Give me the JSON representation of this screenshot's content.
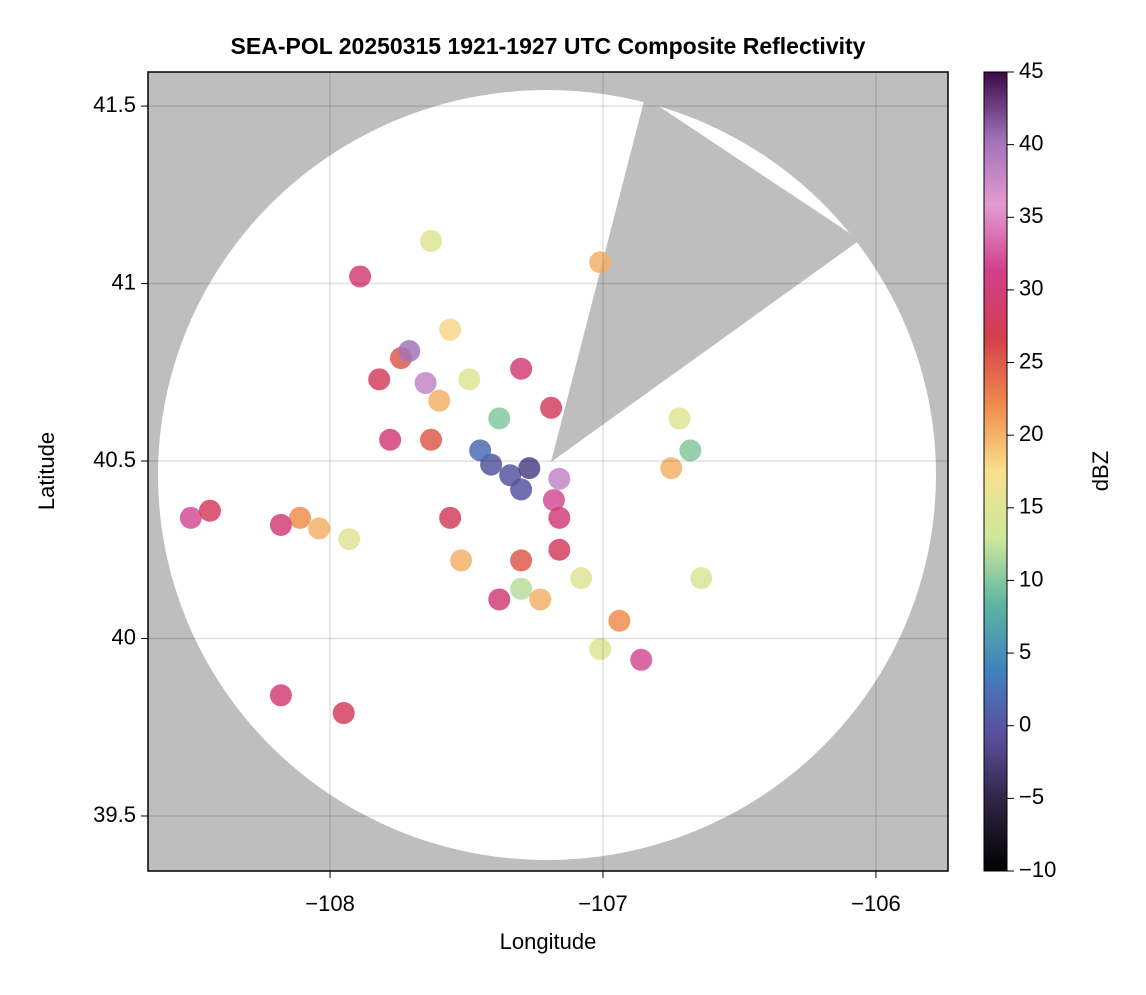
{
  "chart_data": {
    "type": "scatter",
    "title": "SEA-POL 20250315 1921-1927 UTC Composite Reflectivity",
    "xlabel": "Longitude",
    "ylabel": "Latitude",
    "xlim": [
      -108.667,
      -105.736
    ],
    "ylim": [
      39.345,
      41.596
    ],
    "xticks": [
      {
        "value": -108,
        "label": "−108"
      },
      {
        "value": -107,
        "label": "−107"
      },
      {
        "value": -106,
        "label": "−106"
      }
    ],
    "yticks": [
      39.5,
      40.0,
      40.5,
      41.0,
      41.5
    ],
    "grid": true,
    "x": [
      -107.41,
      -107.34,
      -107.27,
      -107.45,
      -107.3,
      -107.16,
      -107.18,
      -107.16,
      -107.74,
      -107.71,
      -107.65,
      -107.82,
      -107.6,
      -107.49,
      -107.56,
      -107.3,
      -107.19,
      -107.38,
      -107.63,
      -107.78,
      -108.11,
      -108.18,
      -108.04,
      -107.93,
      -108.51,
      -108.44,
      -107.3,
      -107.16,
      -107.38,
      -107.23,
      -107.3,
      -107.08,
      -106.94,
      -106.86,
      -107.01,
      -107.56,
      -107.52,
      -106.72,
      -106.68,
      -106.75,
      -106.64,
      -108.18,
      -107.95,
      -107.89,
      -107.63,
      -107.01
    ],
    "y": [
      40.49,
      40.46,
      40.48,
      40.53,
      40.42,
      40.45,
      40.39,
      40.34,
      40.79,
      40.81,
      40.72,
      40.73,
      40.67,
      40.73,
      40.87,
      40.76,
      40.65,
      40.62,
      40.56,
      40.56,
      40.34,
      40.32,
      40.31,
      40.28,
      40.34,
      40.36,
      40.22,
      40.25,
      40.11,
      40.11,
      40.14,
      40.17,
      40.05,
      39.94,
      39.97,
      40.34,
      40.22,
      40.62,
      40.53,
      40.48,
      40.17,
      39.84,
      39.79,
      41.02,
      41.12,
      41.06
    ],
    "values": [
      0,
      0,
      -2,
      2,
      0,
      38,
      32,
      30,
      25,
      40,
      38,
      28,
      20,
      15,
      18,
      30,
      28,
      10,
      25,
      30,
      22,
      30,
      20,
      15,
      32,
      28,
      25,
      28,
      30,
      20,
      12,
      15,
      22,
      32,
      15,
      28,
      20,
      15,
      10,
      20,
      14,
      30,
      28,
      30,
      15,
      20
    ],
    "colorbar": {
      "label": "dBZ",
      "lim": [
        -10,
        45
      ],
      "ticks": [
        {
          "value": -10,
          "label": "−10"
        },
        {
          "value": -5,
          "label": "−5"
        },
        0,
        5,
        10,
        15,
        20,
        25,
        30,
        35,
        40,
        45
      ],
      "colors": [
        "#000000",
        "#2c2340",
        "#5b4d9c",
        "#4180bf",
        "#5cb5a2",
        "#cde89b",
        "#f7e08e",
        "#f08b4c",
        "#d43f4c",
        "#d13f8a",
        "#e39bd0",
        "#a070b8",
        "#3a0a48"
      ]
    }
  }
}
